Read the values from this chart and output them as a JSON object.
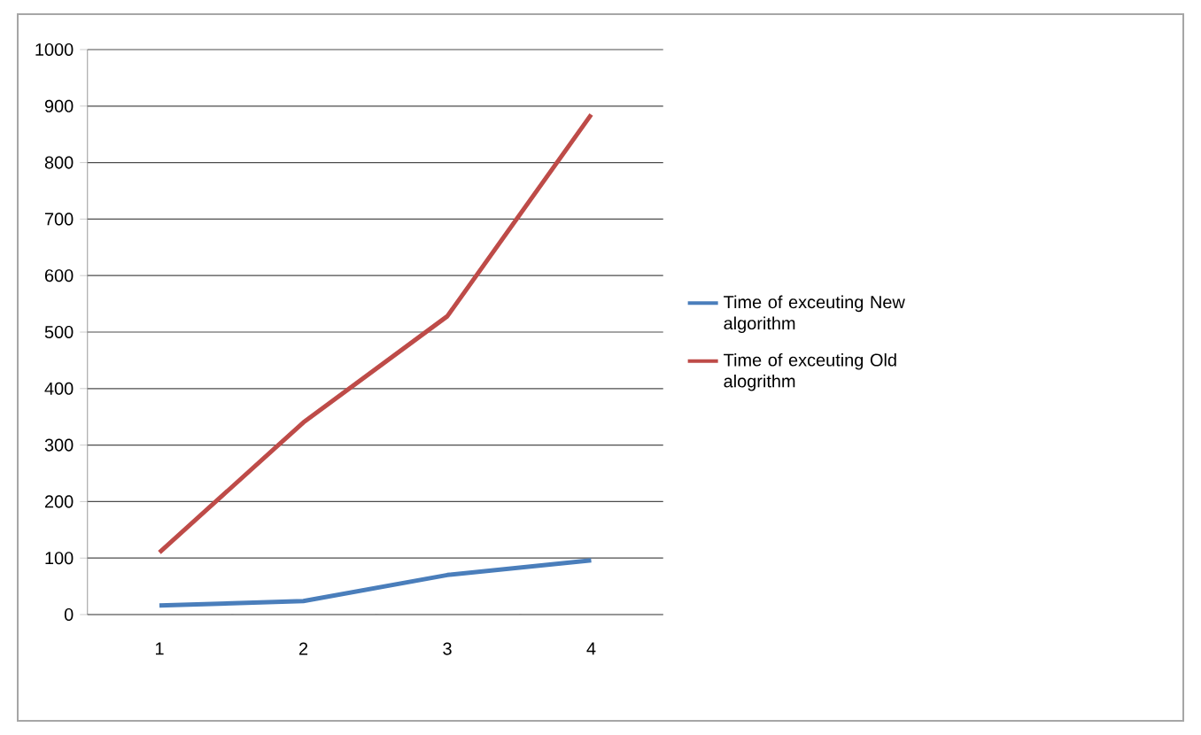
{
  "chart_data": {
    "type": "line",
    "categories": [
      "1",
      "2",
      "3",
      "4"
    ],
    "series": [
      {
        "name": "Time of exceuting New algorithm",
        "color": "#4a7ebb",
        "values": [
          16,
          24,
          70,
          96
        ]
      },
      {
        "name": "Time of exceuting Old alogrithm",
        "color": "#be4b48",
        "values": [
          110,
          340,
          528,
          885
        ]
      }
    ],
    "ylim": [
      0,
      1000
    ],
    "yticks": [
      0,
      100,
      200,
      300,
      400,
      500,
      600,
      700,
      800,
      900,
      1000
    ],
    "grid": "y",
    "legend": "right",
    "marker": "none",
    "line_style": "solid"
  }
}
